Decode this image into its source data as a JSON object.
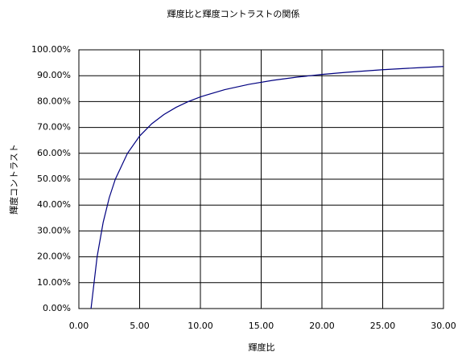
{
  "chart_data": {
    "type": "line",
    "title": "輝度比と輝度コントラストの関係",
    "x_label": "輝度比",
    "y_label": "輝度コントラスト",
    "x": [
      1,
      1.5,
      2,
      2.5,
      3,
      4,
      5,
      6,
      7,
      8,
      9,
      10,
      12,
      14,
      16,
      18,
      20,
      22,
      25,
      28,
      30
    ],
    "series": [
      {
        "name": "輝度コントラスト",
        "color": "#000080",
        "values": [
          0,
          20,
          33.33,
          42.86,
          50,
          60,
          66.67,
          71.43,
          75,
          77.78,
          80,
          81.82,
          84.62,
          86.67,
          88.24,
          89.47,
          90.48,
          91.3,
          92.31,
          93.1,
          93.55
        ]
      }
    ],
    "xlim": [
      0,
      30
    ],
    "xticks": [
      {
        "value": 0,
        "label": "0.00"
      },
      {
        "value": 5,
        "label": "5.00"
      },
      {
        "value": 10,
        "label": "10.00"
      },
      {
        "value": 15,
        "label": "15.00"
      },
      {
        "value": 20,
        "label": "20.00"
      },
      {
        "value": 25,
        "label": "25.00"
      },
      {
        "value": 30,
        "label": "30.00"
      }
    ],
    "ylim": [
      0,
      100
    ],
    "yticks": [
      {
        "value": 0,
        "label": "0.00%"
      },
      {
        "value": 10,
        "label": "10.00%"
      },
      {
        "value": 20,
        "label": "20.00%"
      },
      {
        "value": 30,
        "label": "30.00%"
      },
      {
        "value": 40,
        "label": "40.00%"
      },
      {
        "value": 50,
        "label": "50.00%"
      },
      {
        "value": 60,
        "label": "60.00%"
      },
      {
        "value": 70,
        "label": "70.00%"
      },
      {
        "value": 80,
        "label": "80.00%"
      },
      {
        "value": 90,
        "label": "90.00%"
      },
      {
        "value": 100,
        "label": "100.00%"
      }
    ],
    "grid": true
  }
}
